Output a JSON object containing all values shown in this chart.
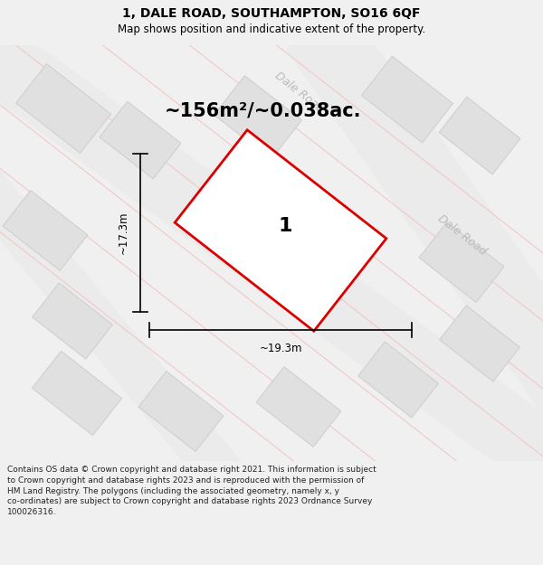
{
  "title": "1, DALE ROAD, SOUTHAMPTON, SO16 6QF",
  "subtitle": "Map shows position and indicative extent of the property.",
  "area_text": "~156m²/~0.038ac.",
  "dim_width": "~19.3m",
  "dim_height": "~17.3m",
  "property_label": "1",
  "footer_wrapped": "Contains OS data © Crown copyright and database right 2021. This information is subject\nto Crown copyright and database rights 2023 and is reproduced with the permission of\nHM Land Registry. The polygons (including the associated geometry, namely x, y\nco-ordinates) are subject to Crown copyright and database rights 2023 Ordnance Survey\n100026316.",
  "bg_color": "#f0f0f0",
  "map_bg": "#ffffff",
  "road_strip_color": "#ebebeb",
  "road_line_color": "#f2c8c8",
  "building_color": "#e0e0e0",
  "building_edge": "#d0d0d0",
  "plot_fill": "#ffffff",
  "plot_outline": "#dd0000",
  "inner_fill": "#d8d8d8",
  "inner_edge": "#c8c8c8",
  "road_label_color": "#bbbbbb",
  "title_color": "#000000",
  "footer_color": "#222222",
  "dim_line_color": "#000000"
}
